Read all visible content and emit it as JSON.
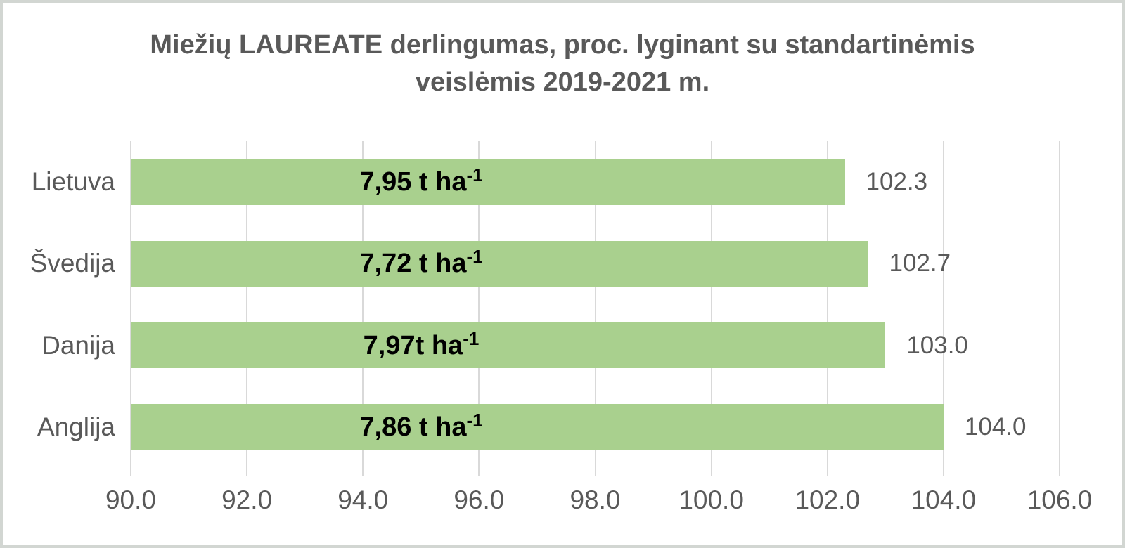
{
  "page": {
    "background": "#ffffff",
    "border_color": "#d2d6d2"
  },
  "chart_data": {
    "type": "bar",
    "orientation": "horizontal",
    "title": "Miežių LAUREATE derlingumas, proc. lyginant su standartinėmis veislėmis 2019-2021 m.",
    "title_lines": [
      "Miežių LAUREATE derlingumas, proc. lyginant su standartinėmis",
      "veislėmis 2019-2021 m."
    ],
    "categories": [
      "Lietuva",
      "Švedija",
      "Danija",
      "Anglija"
    ],
    "values": [
      102.3,
      102.7,
      103.0,
      104.0
    ],
    "value_labels": [
      "102.3",
      "102.7",
      "103.0",
      "104.0"
    ],
    "bar_inner_labels": [
      {
        "text": "7,95 t ha",
        "sup": "-1"
      },
      {
        "text": "7,72 t ha",
        "sup": "-1"
      },
      {
        "text": "7,97t ha",
        "sup": "-1"
      },
      {
        "text": "7,86 t ha",
        "sup": "-1"
      }
    ],
    "xlabel": "",
    "ylabel": "",
    "xlim": [
      90.0,
      106.0
    ],
    "xticks": [
      90.0,
      92.0,
      94.0,
      96.0,
      98.0,
      100.0,
      102.0,
      104.0,
      106.0
    ],
    "xtick_labels": [
      "90.0",
      "92.0",
      "94.0",
      "96.0",
      "98.0",
      "100.0",
      "102.0",
      "104.0",
      "106.0"
    ],
    "grid": true,
    "legend": false,
    "colors": {
      "bar": "#a9d08e",
      "gridline": "#d9d9d9",
      "title_text": "#595959",
      "axis_text": "#595959",
      "category_text": "#595959",
      "value_label_text": "#595959",
      "inner_label_text": "#000000"
    }
  }
}
